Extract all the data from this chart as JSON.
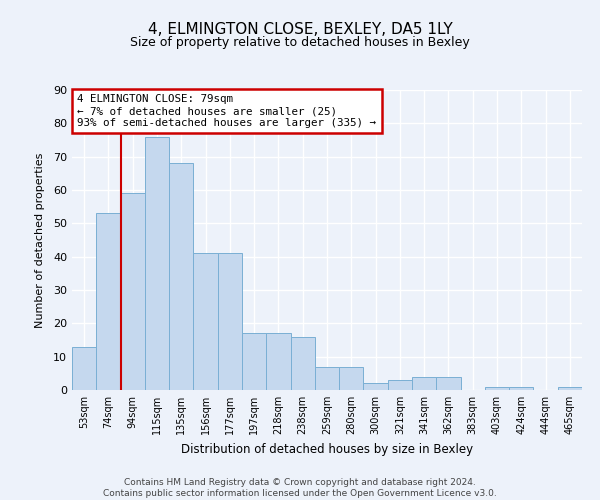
{
  "title": "4, ELMINGTON CLOSE, BEXLEY, DA5 1LY",
  "subtitle": "Size of property relative to detached houses in Bexley",
  "xlabel": "Distribution of detached houses by size in Bexley",
  "ylabel": "Number of detached properties",
  "categories": [
    "53sqm",
    "74sqm",
    "94sqm",
    "115sqm",
    "135sqm",
    "156sqm",
    "177sqm",
    "197sqm",
    "218sqm",
    "238sqm",
    "259sqm",
    "280sqm",
    "300sqm",
    "321sqm",
    "341sqm",
    "362sqm",
    "383sqm",
    "403sqm",
    "424sqm",
    "444sqm",
    "465sqm"
  ],
  "values": [
    13,
    53,
    59,
    76,
    68,
    41,
    41,
    17,
    17,
    16,
    7,
    7,
    2,
    3,
    4,
    4,
    0,
    1,
    1,
    0,
    1
  ],
  "bar_color": "#c5d8ee",
  "bar_edge_color": "#7aafd4",
  "property_sqm": "79sqm",
  "pct_smaller": "7%",
  "n_smaller": 25,
  "pct_larger_semi": "93%",
  "n_larger_semi": 335,
  "annotation_box_color": "#ffffff",
  "annotation_box_edge": "#cc0000",
  "red_line_color": "#cc0000",
  "ylim": [
    0,
    90
  ],
  "yticks": [
    0,
    10,
    20,
    30,
    40,
    50,
    60,
    70,
    80,
    90
  ],
  "background_color": "#edf2fa",
  "grid_color": "#ffffff",
  "footer": "Contains HM Land Registry data © Crown copyright and database right 2024.\nContains public sector information licensed under the Open Government Licence v3.0."
}
